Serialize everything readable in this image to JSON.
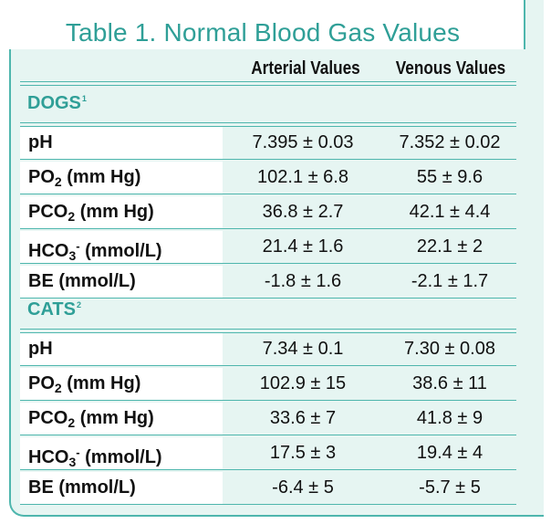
{
  "title": "Table 1. Normal Blood Gas Values",
  "columns": {
    "arterial": "Arterial Values",
    "venous": "Venous Values"
  },
  "sections": [
    {
      "name": "DOGS",
      "footnote": "1",
      "rows": [
        {
          "label_main": "pH",
          "label_sub": "",
          "label_sup": "",
          "label_unit": "",
          "arterial": "7.395 ± 0.03",
          "venous": "7.352 ± 0.02"
        },
        {
          "label_main": "PO",
          "label_sub": "2",
          "label_sup": "",
          "label_unit": " (mm Hg)",
          "arterial": "102.1 ± 6.8",
          "venous": "55 ± 9.6"
        },
        {
          "label_main": "PCO",
          "label_sub": "2",
          "label_sup": "",
          "label_unit": " (mm Hg)",
          "arterial": "36.8 ± 2.7",
          "venous": "42.1 ± 4.4"
        },
        {
          "label_main": "HCO",
          "label_sub": "3",
          "label_sup": "-",
          "label_unit": " (mmol/L)",
          "arterial": "21.4 ± 1.6",
          "venous": "22.1 ± 2"
        },
        {
          "label_main": "BE (mmol/L)",
          "label_sub": "",
          "label_sup": "",
          "label_unit": "",
          "arterial": "-1.8 ± 1.6",
          "venous": "-2.1 ± 1.7"
        }
      ]
    },
    {
      "name": "CATS",
      "footnote": "2",
      "rows": [
        {
          "label_main": "pH",
          "label_sub": "",
          "label_sup": "",
          "label_unit": "",
          "arterial": "7.34 ± 0.1",
          "venous": "7.30 ± 0.08"
        },
        {
          "label_main": "PO",
          "label_sub": "2",
          "label_sup": "",
          "label_unit": " (mm Hg)",
          "arterial": "102.9 ± 15",
          "venous": "38.6 ± 11"
        },
        {
          "label_main": "PCO",
          "label_sub": "2",
          "label_sup": "",
          "label_unit": " (mm Hg)",
          "arterial": "33.6 ± 7",
          "venous": "41.8 ± 9"
        },
        {
          "label_main": "HCO",
          "label_sub": "3",
          "label_sup": "-",
          "label_unit": " (mmol/L)",
          "arterial": "17.5 ± 3",
          "venous": "19.4 ± 4"
        },
        {
          "label_main": "BE (mmol/L)",
          "label_sub": "",
          "label_sup": "",
          "label_unit": "",
          "arterial": "-6.4 ± 5",
          "venous": "-5.7 ± 5"
        }
      ]
    }
  ],
  "colors": {
    "teal": "#2f9f97",
    "rule": "#4eb6ad",
    "panel": "#e6f5f2"
  }
}
